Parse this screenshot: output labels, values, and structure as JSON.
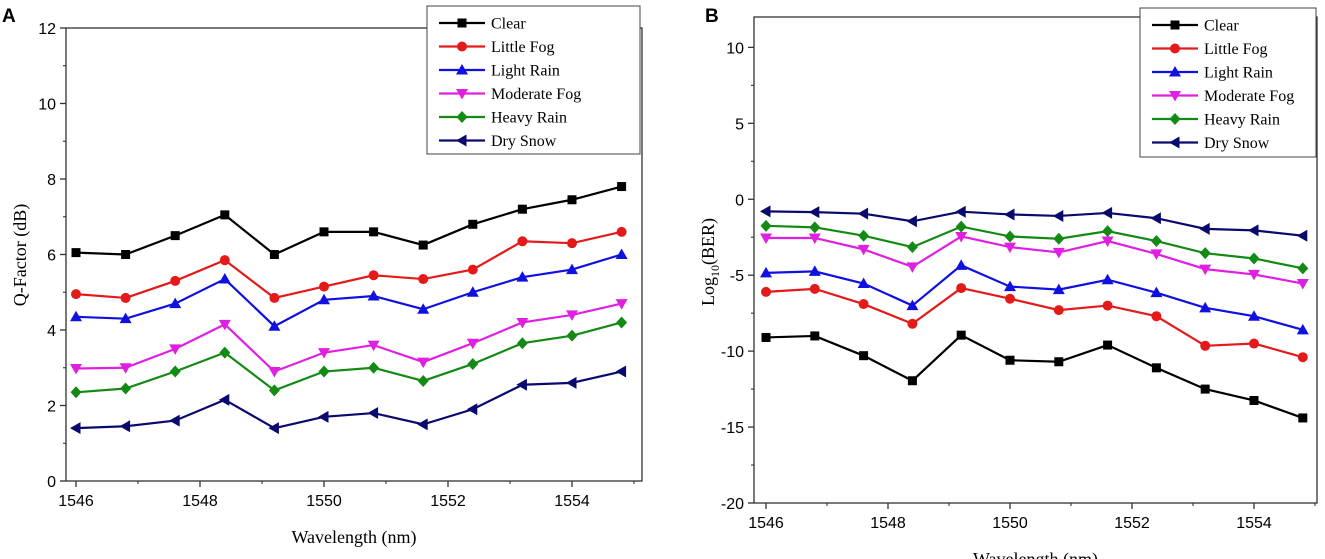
{
  "chart_data": [
    {
      "type": "line",
      "panel_label": "A",
      "xlabel": "Wavelength (nm)",
      "ylabel": "Q-Factor (dB)",
      "xlim": [
        1545.8,
        1555
      ],
      "ylim": [
        0,
        12
      ],
      "xticks": [
        "1546",
        "1548",
        "1550",
        "1552",
        "1554"
      ],
      "yticks": [
        "0",
        "2",
        "4",
        "6",
        "8",
        "10",
        "12"
      ],
      "legend_position": "top-right",
      "x": [
        1546,
        1546.8,
        1547.6,
        1548.4,
        1549.2,
        1550,
        1550.8,
        1551.6,
        1552.4,
        1553.2,
        1554,
        1554.8
      ],
      "series": [
        {
          "name": "Clear",
          "color": "#000000",
          "marker": "square",
          "values": [
            6.05,
            6.0,
            6.5,
            7.05,
            6.0,
            6.6,
            6.6,
            6.25,
            6.8,
            7.2,
            7.45,
            7.8
          ]
        },
        {
          "name": "Little Fog",
          "color": "#e41a1a",
          "marker": "circle",
          "values": [
            4.95,
            4.85,
            5.3,
            5.85,
            4.85,
            5.15,
            5.45,
            5.35,
            5.6,
            6.35,
            6.3,
            6.6
          ]
        },
        {
          "name": "Light Rain",
          "color": "#1010e0",
          "marker": "triangle-up",
          "values": [
            4.35,
            4.3,
            4.7,
            5.35,
            4.1,
            4.8,
            4.9,
            4.55,
            5.0,
            5.4,
            5.6,
            6.0
          ]
        },
        {
          "name": "Moderate Fog",
          "color": "#e020e0",
          "marker": "triangle-down",
          "values": [
            2.98,
            3.0,
            3.5,
            4.15,
            2.9,
            3.4,
            3.6,
            3.15,
            3.65,
            4.2,
            4.4,
            4.7
          ]
        },
        {
          "name": "Heavy Rain",
          "color": "#138a13",
          "marker": "diamond",
          "values": [
            2.35,
            2.45,
            2.9,
            3.4,
            2.4,
            2.9,
            3.0,
            2.65,
            3.1,
            3.65,
            3.85,
            4.2
          ]
        },
        {
          "name": "Dry Snow",
          "color": "#0a0a6e",
          "marker": "triangle-left",
          "values": [
            1.4,
            1.45,
            1.6,
            2.15,
            1.4,
            1.7,
            1.8,
            1.5,
            1.9,
            2.55,
            2.6,
            2.9
          ]
        }
      ]
    },
    {
      "type": "line",
      "panel_label": "B",
      "xlabel": "Wavelength (nm)",
      "ylabel": "Log",
      "ylabel_sub": "10",
      "ylabel_tail": "(BER)",
      "xlim": [
        1545.8,
        1555
      ],
      "ylim": [
        -20,
        12
      ],
      "xticks": [
        "1546",
        "1548",
        "1550",
        "1552",
        "1554"
      ],
      "yticks": [
        "-20",
        "-15",
        "-10",
        "-5",
        "0",
        "5",
        "10"
      ],
      "legend_position": "top-right",
      "x": [
        1546,
        1546.8,
        1547.6,
        1548.4,
        1549.2,
        1550,
        1550.8,
        1551.6,
        1552.4,
        1553.2,
        1554,
        1554.8
      ],
      "series": [
        {
          "name": "Clear",
          "color": "#000000",
          "marker": "square",
          "values": [
            -9.1,
            -9.0,
            -10.3,
            -11.95,
            -8.95,
            -10.6,
            -10.7,
            -9.6,
            -11.1,
            -12.5,
            -13.25,
            -14.4
          ]
        },
        {
          "name": "Little Fog",
          "color": "#e41a1a",
          "marker": "circle",
          "values": [
            -6.1,
            -5.9,
            -6.9,
            -8.2,
            -5.85,
            -6.55,
            -7.3,
            -7.0,
            -7.7,
            -9.65,
            -9.5,
            -10.4
          ]
        },
        {
          "name": "Light Rain",
          "color": "#1010e0",
          "marker": "triangle-up",
          "values": [
            -4.85,
            -4.75,
            -5.55,
            -7.0,
            -4.35,
            -5.75,
            -5.95,
            -5.3,
            -6.15,
            -7.15,
            -7.7,
            -8.6
          ]
        },
        {
          "name": "Moderate Fog",
          "color": "#e020e0",
          "marker": "triangle-down",
          "values": [
            -2.55,
            -2.55,
            -3.3,
            -4.45,
            -2.45,
            -3.15,
            -3.5,
            -2.75,
            -3.6,
            -4.6,
            -4.95,
            -5.55
          ]
        },
        {
          "name": "Heavy Rain",
          "color": "#138a13",
          "marker": "diamond",
          "values": [
            -1.75,
            -1.85,
            -2.4,
            -3.15,
            -1.8,
            -2.45,
            -2.6,
            -2.1,
            -2.75,
            -3.55,
            -3.9,
            -4.55
          ]
        },
        {
          "name": "Dry Snow",
          "color": "#0a0a6e",
          "marker": "triangle-left",
          "values": [
            -0.8,
            -0.85,
            -0.95,
            -1.45,
            -0.82,
            -1.0,
            -1.1,
            -0.9,
            -1.25,
            -1.95,
            -2.05,
            -2.4
          ]
        }
      ]
    }
  ]
}
